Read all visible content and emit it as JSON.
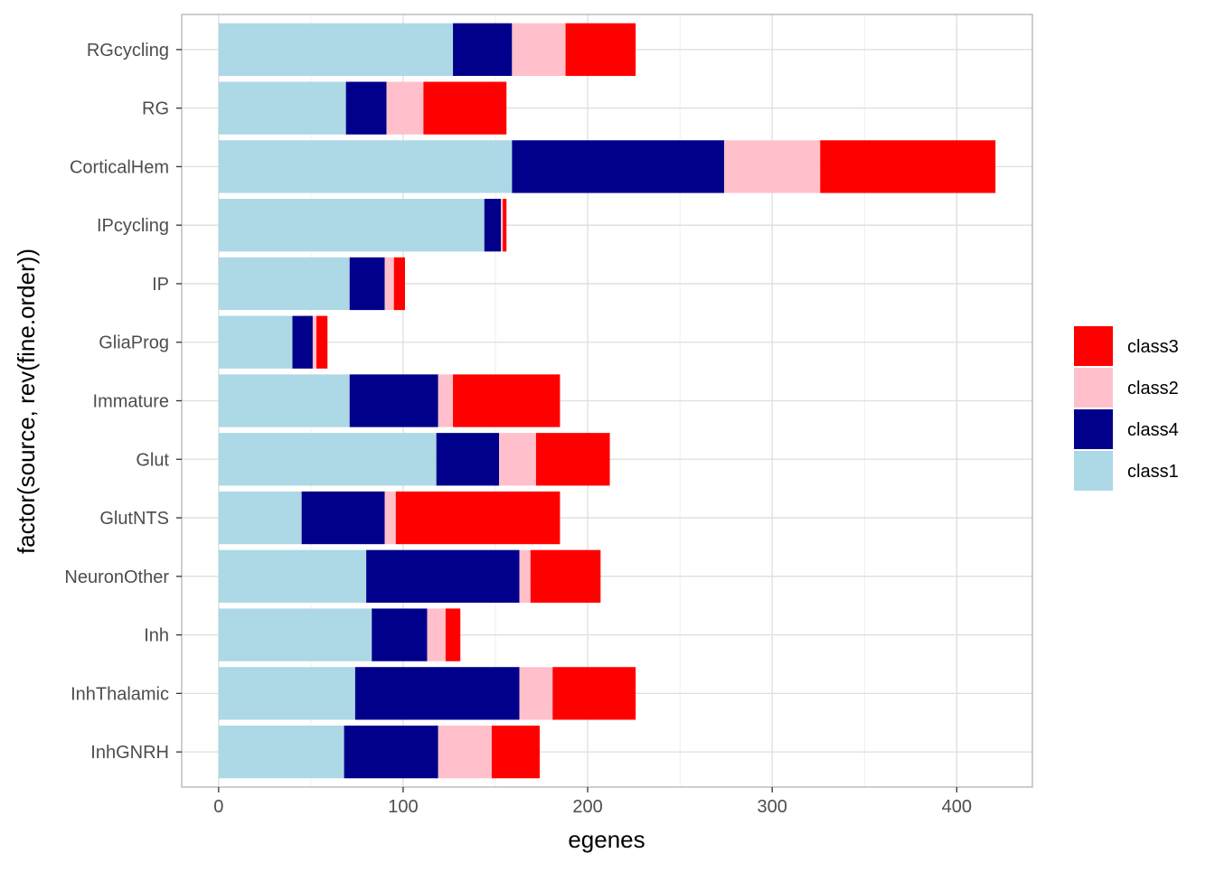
{
  "chart_data": {
    "type": "bar",
    "orientation": "horizontal",
    "stacked": true,
    "xlabel": "egenes",
    "ylabel": "factor(source, rev(fine.order))",
    "xlim": [
      -20,
      441
    ],
    "x_ticks": [
      0,
      100,
      200,
      300,
      400
    ],
    "x_tick_labels": [
      "0",
      "100",
      "200",
      "300",
      "400"
    ],
    "grid": true,
    "legend_position": "right",
    "categories": [
      "RGcycling",
      "RG",
      "CorticalHem",
      "IPcycling",
      "IP",
      "GliaProg",
      "Immature",
      "Glut",
      "GlutNTS",
      "NeuronOther",
      "Inh",
      "InhThalamic",
      "InhGNRH"
    ],
    "series": [
      {
        "name": "class1",
        "color": "#ADD8E6",
        "values": [
          127,
          69,
          159,
          144,
          71,
          40,
          71,
          118,
          45,
          80,
          83,
          74,
          68
        ]
      },
      {
        "name": "class4",
        "color": "#00008B",
        "values": [
          32,
          22,
          115,
          9,
          19,
          11,
          48,
          34,
          45,
          83,
          30,
          89,
          51
        ]
      },
      {
        "name": "class2",
        "color": "#FFC0CB",
        "values": [
          29,
          20,
          52,
          1,
          5,
          2,
          8,
          20,
          6,
          6,
          10,
          18,
          29
        ]
      },
      {
        "name": "class3",
        "color": "#FF0000",
        "values": [
          38,
          45,
          95,
          2,
          6,
          6,
          58,
          40,
          89,
          38,
          8,
          45,
          26
        ]
      }
    ],
    "legend_order": [
      "class3",
      "class2",
      "class4",
      "class1"
    ]
  }
}
